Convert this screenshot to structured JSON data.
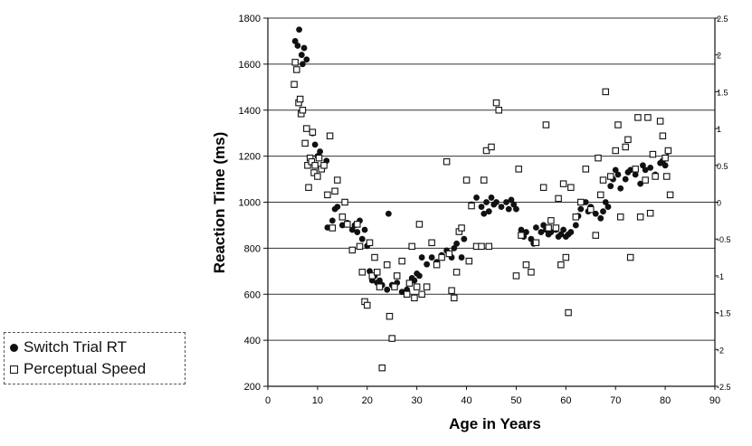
{
  "chart_data": {
    "type": "scatter",
    "xlabel": "Age in Years",
    "ylabel": "Reaction Time (ms)",
    "xlim": [
      0,
      90
    ],
    "ylim": [
      200,
      1800
    ],
    "y2lim": [
      -2.5,
      2.5
    ],
    "xticks": [
      0,
      10,
      20,
      30,
      40,
      50,
      60,
      70,
      80,
      90
    ],
    "yticks": [
      200,
      400,
      600,
      800,
      1000,
      1200,
      1400,
      1600,
      1800
    ],
    "y2ticks": [
      "2.5",
      "2",
      "1.5",
      "1",
      "0.5",
      "0",
      "-0.5",
      "-1",
      "-1.5",
      "-2",
      "-2.5"
    ],
    "grid": "horizontal",
    "legend_position": "bottom-left, outside plot",
    "series": [
      {
        "name": "Switch Trial RT",
        "axis": "left",
        "marker": "filled-circle",
        "color": "#111111",
        "points": [
          [
            5.5,
            1700
          ],
          [
            6,
            1680
          ],
          [
            6.3,
            1750
          ],
          [
            6.8,
            1640
          ],
          [
            7,
            1600
          ],
          [
            7.3,
            1670
          ],
          [
            7.8,
            1620
          ],
          [
            9,
            1300
          ],
          [
            9.5,
            1250
          ],
          [
            10,
            1200
          ],
          [
            10.5,
            1220
          ],
          [
            11,
            1150
          ],
          [
            11.8,
            1180
          ],
          [
            12,
            890
          ],
          [
            13,
            920
          ],
          [
            13.5,
            970
          ],
          [
            14,
            980
          ],
          [
            15,
            900
          ],
          [
            16,
            910
          ],
          [
            17,
            880
          ],
          [
            17.5,
            900
          ],
          [
            18,
            870
          ],
          [
            18.5,
            920
          ],
          [
            19,
            840
          ],
          [
            19.5,
            880
          ],
          [
            20,
            810
          ],
          [
            20.5,
            700
          ],
          [
            21,
            660
          ],
          [
            21.5,
            680
          ],
          [
            22,
            650
          ],
          [
            22.5,
            660
          ],
          [
            23,
            640
          ],
          [
            24,
            620
          ],
          [
            24.3,
            950
          ],
          [
            25,
            640
          ],
          [
            26,
            650
          ],
          [
            27,
            610
          ],
          [
            28,
            620
          ],
          [
            29,
            670
          ],
          [
            29.5,
            660
          ],
          [
            30,
            690
          ],
          [
            30.5,
            680
          ],
          [
            31,
            760
          ],
          [
            32,
            730
          ],
          [
            33,
            760
          ],
          [
            34,
            740
          ],
          [
            35,
            770
          ],
          [
            36,
            790
          ],
          [
            37,
            760
          ],
          [
            37.5,
            800
          ],
          [
            38,
            820
          ],
          [
            39,
            760
          ],
          [
            39.5,
            840
          ],
          [
            41,
            990
          ],
          [
            42,
            1020
          ],
          [
            43,
            980
          ],
          [
            43.5,
            950
          ],
          [
            44,
            1000
          ],
          [
            44.5,
            960
          ],
          [
            45,
            1020
          ],
          [
            45.5,
            990
          ],
          [
            46,
            1000
          ],
          [
            47,
            980
          ],
          [
            48,
            1000
          ],
          [
            48.5,
            970
          ],
          [
            49,
            1010
          ],
          [
            49.5,
            990
          ],
          [
            50,
            970
          ],
          [
            51,
            880
          ],
          [
            51.5,
            850
          ],
          [
            52,
            870
          ],
          [
            53,
            840
          ],
          [
            53.5,
            820
          ],
          [
            54,
            890
          ],
          [
            55,
            870
          ],
          [
            55.5,
            900
          ],
          [
            56,
            880
          ],
          [
            56.5,
            860
          ],
          [
            57,
            870
          ],
          [
            58,
            880
          ],
          [
            58.5,
            850
          ],
          [
            59,
            860
          ],
          [
            59.5,
            880
          ],
          [
            60,
            850
          ],
          [
            60.5,
            860
          ],
          [
            61,
            870
          ],
          [
            62,
            900
          ],
          [
            62.5,
            940
          ],
          [
            63,
            970
          ],
          [
            64,
            1000
          ],
          [
            64.5,
            960
          ],
          [
            65,
            980
          ],
          [
            66,
            950
          ],
          [
            67,
            930
          ],
          [
            67.5,
            960
          ],
          [
            68,
            1000
          ],
          [
            68.5,
            980
          ],
          [
            69,
            1070
          ],
          [
            69.5,
            1100
          ],
          [
            70,
            1140
          ],
          [
            70.5,
            1120
          ],
          [
            71,
            1060
          ],
          [
            72,
            1100
          ],
          [
            72.5,
            1130
          ],
          [
            73,
            1140
          ],
          [
            74,
            1120
          ],
          [
            75,
            1080
          ],
          [
            75.5,
            1160
          ],
          [
            76,
            1140
          ],
          [
            77,
            1150
          ],
          [
            78,
            1120
          ],
          [
            79,
            1170
          ],
          [
            79.5,
            1180
          ],
          [
            80,
            1160
          ],
          [
            80.5,
            1220
          ]
        ]
      },
      {
        "name": "Perceptual Speed",
        "axis": "right",
        "marker": "open-square",
        "color": "#111111",
        "points": [
          [
            5.3,
            1.6
          ],
          [
            5.5,
            1.9
          ],
          [
            5.8,
            1.8
          ],
          [
            6.2,
            1.35
          ],
          [
            6.5,
            1.4
          ],
          [
            6.7,
            1.2
          ],
          [
            7,
            1.25
          ],
          [
            7.5,
            0.8
          ],
          [
            7.8,
            1.0
          ],
          [
            8,
            0.5
          ],
          [
            8.2,
            0.2
          ],
          [
            8.5,
            0.6
          ],
          [
            8.8,
            0.55
          ],
          [
            9,
            0.95
          ],
          [
            9.3,
            0.4
          ],
          [
            9.5,
            0.5
          ],
          [
            10,
            0.35
          ],
          [
            10.3,
            0.6
          ],
          [
            10.8,
            0.45
          ],
          [
            11.3,
            0.5
          ],
          [
            12,
            0.1
          ],
          [
            12.5,
            0.9
          ],
          [
            13,
            -0.35
          ],
          [
            13.5,
            0.15
          ],
          [
            14,
            0.3
          ],
          [
            15,
            -0.2
          ],
          [
            15.5,
            0
          ],
          [
            16,
            -0.3
          ],
          [
            17,
            -0.65
          ],
          [
            18,
            -0.3
          ],
          [
            18.5,
            -0.6
          ],
          [
            19,
            -0.95
          ],
          [
            19.5,
            -1.35
          ],
          [
            20,
            -1.4
          ],
          [
            20.5,
            -0.55
          ],
          [
            21,
            -1.0
          ],
          [
            21.5,
            -0.75
          ],
          [
            22,
            -0.95
          ],
          [
            22.5,
            -1.15
          ],
          [
            23,
            -2.25
          ],
          [
            24,
            -0.85
          ],
          [
            24.5,
            -1.55
          ],
          [
            25,
            -1.85
          ],
          [
            25.5,
            -1.15
          ],
          [
            26,
            -1.0
          ],
          [
            27,
            -0.8
          ],
          [
            28,
            -1.25
          ],
          [
            28.5,
            -1.1
          ],
          [
            29,
            -0.6
          ],
          [
            29.5,
            -1.3
          ],
          [
            30,
            -1.15
          ],
          [
            30.5,
            -0.3
          ],
          [
            31,
            -1.25
          ],
          [
            32,
            -1.15
          ],
          [
            33,
            -0.55
          ],
          [
            34,
            -0.85
          ],
          [
            35,
            -0.75
          ],
          [
            36,
            0.55
          ],
          [
            36.5,
            -0.7
          ],
          [
            37,
            -1.2
          ],
          [
            37.5,
            -1.3
          ],
          [
            38,
            -0.95
          ],
          [
            38.5,
            -0.4
          ],
          [
            39,
            -0.35
          ],
          [
            40,
            0.3
          ],
          [
            40.5,
            -0.8
          ],
          [
            41,
            -0.05
          ],
          [
            42,
            -0.6
          ],
          [
            43,
            -0.6
          ],
          [
            43.5,
            0.3
          ],
          [
            44,
            0.7
          ],
          [
            44.5,
            -0.6
          ],
          [
            45,
            0.75
          ],
          [
            46,
            1.35
          ],
          [
            46.5,
            1.25
          ],
          [
            50,
            -1.0
          ],
          [
            50.5,
            0.45
          ],
          [
            51,
            -0.45
          ],
          [
            52,
            -0.85
          ],
          [
            53,
            -0.95
          ],
          [
            54,
            -0.55
          ],
          [
            55.5,
            0.2
          ],
          [
            56,
            1.05
          ],
          [
            56.5,
            -0.35
          ],
          [
            57,
            -0.25
          ],
          [
            58,
            -0.35
          ],
          [
            58.5,
            0.05
          ],
          [
            59,
            -0.85
          ],
          [
            59.5,
            0.25
          ],
          [
            60,
            -0.75
          ],
          [
            60.5,
            -1.5
          ],
          [
            61,
            0.2
          ],
          [
            62,
            -0.2
          ],
          [
            63,
            0
          ],
          [
            64,
            0.45
          ],
          [
            65,
            -0.1
          ],
          [
            66,
            -0.45
          ],
          [
            66.5,
            0.6
          ],
          [
            67,
            0.1
          ],
          [
            67.5,
            0.3
          ],
          [
            68,
            1.5
          ],
          [
            69,
            0.35
          ],
          [
            70,
            0.7
          ],
          [
            70.5,
            1.05
          ],
          [
            71,
            -0.2
          ],
          [
            72,
            0.75
          ],
          [
            72.5,
            0.85
          ],
          [
            73,
            -0.75
          ],
          [
            74,
            0.45
          ],
          [
            74.5,
            1.15
          ],
          [
            75,
            -0.2
          ],
          [
            76,
            0.3
          ],
          [
            76.5,
            1.15
          ],
          [
            77,
            -0.15
          ],
          [
            77.5,
            0.65
          ],
          [
            78,
            0.35
          ],
          [
            79,
            1.1
          ],
          [
            79.5,
            0.9
          ],
          [
            80,
            0.6
          ],
          [
            80.3,
            0.35
          ],
          [
            80.6,
            0.7
          ],
          [
            81,
            0.1
          ]
        ]
      }
    ]
  }
}
